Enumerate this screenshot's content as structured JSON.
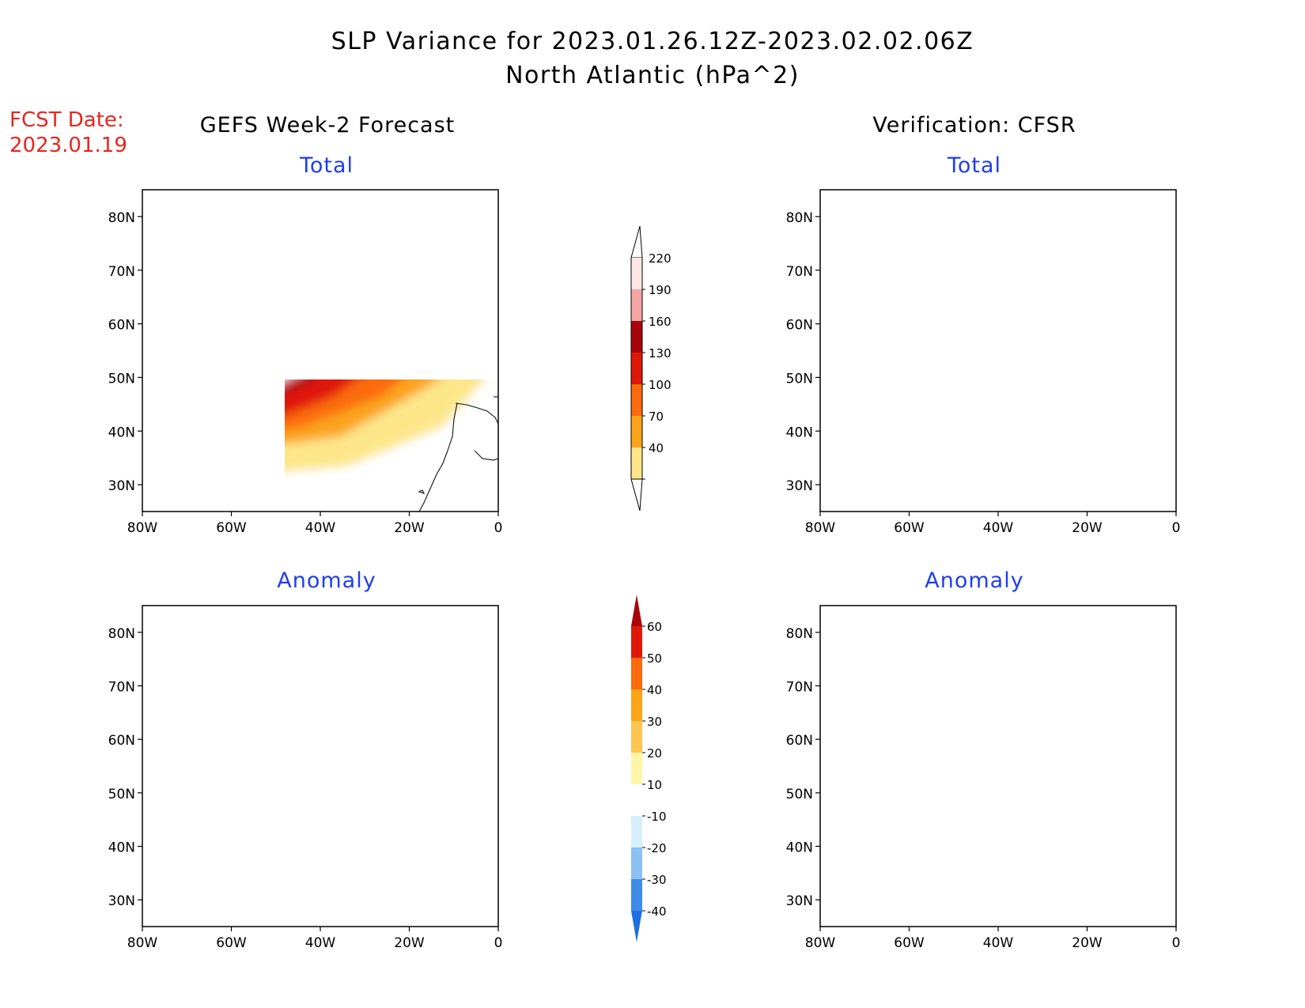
{
  "header": {
    "title_line1": "SLP Variance for 2023.01.26.12Z-2023.02.02.06Z",
    "title_line2": "North Atlantic (hPa^2)"
  },
  "forecast_date": {
    "label": "FCST Date:",
    "value": "2023.01.19"
  },
  "columns": {
    "left_title": "GEFS Week-2 Forecast",
    "right_title": "Verification: CFSR"
  },
  "panels": [
    {
      "id": "gefs-total",
      "subtitle": "Total"
    },
    {
      "id": "cfsr-total",
      "subtitle": "Total"
    },
    {
      "id": "gefs-anomaly",
      "subtitle": "Anomaly"
    },
    {
      "id": "cfsr-anomaly",
      "subtitle": "Anomaly"
    }
  ],
  "axes": {
    "lat_ticks": [
      "30N",
      "40N",
      "50N",
      "60N",
      "70N",
      "80N"
    ],
    "lon_ticks": [
      "80W",
      "60W",
      "40W",
      "20W",
      "0"
    ]
  },
  "total_colorbar": {
    "labels": [
      "40",
      "70",
      "100",
      "130",
      "160",
      "190",
      "220"
    ],
    "colors": [
      "#fde68a",
      "#fca31a",
      "#fb6a0c",
      "#e0180a",
      "#a8050a",
      "#f5a5a5",
      "#fde5e5"
    ]
  },
  "anomaly_colorbar": {
    "labels": [
      "-40",
      "-30",
      "-20",
      "-10",
      "10",
      "20",
      "30",
      "40",
      "50",
      "60"
    ],
    "colors": [
      "#1f6fe0",
      "#3d8be8",
      "#8cc0f2",
      "#d6f0fb",
      "#ffffff",
      "#fff5a8",
      "#fdc552",
      "#fca31a",
      "#fb6a0c",
      "#e0180a",
      "#a8050a"
    ]
  }
}
